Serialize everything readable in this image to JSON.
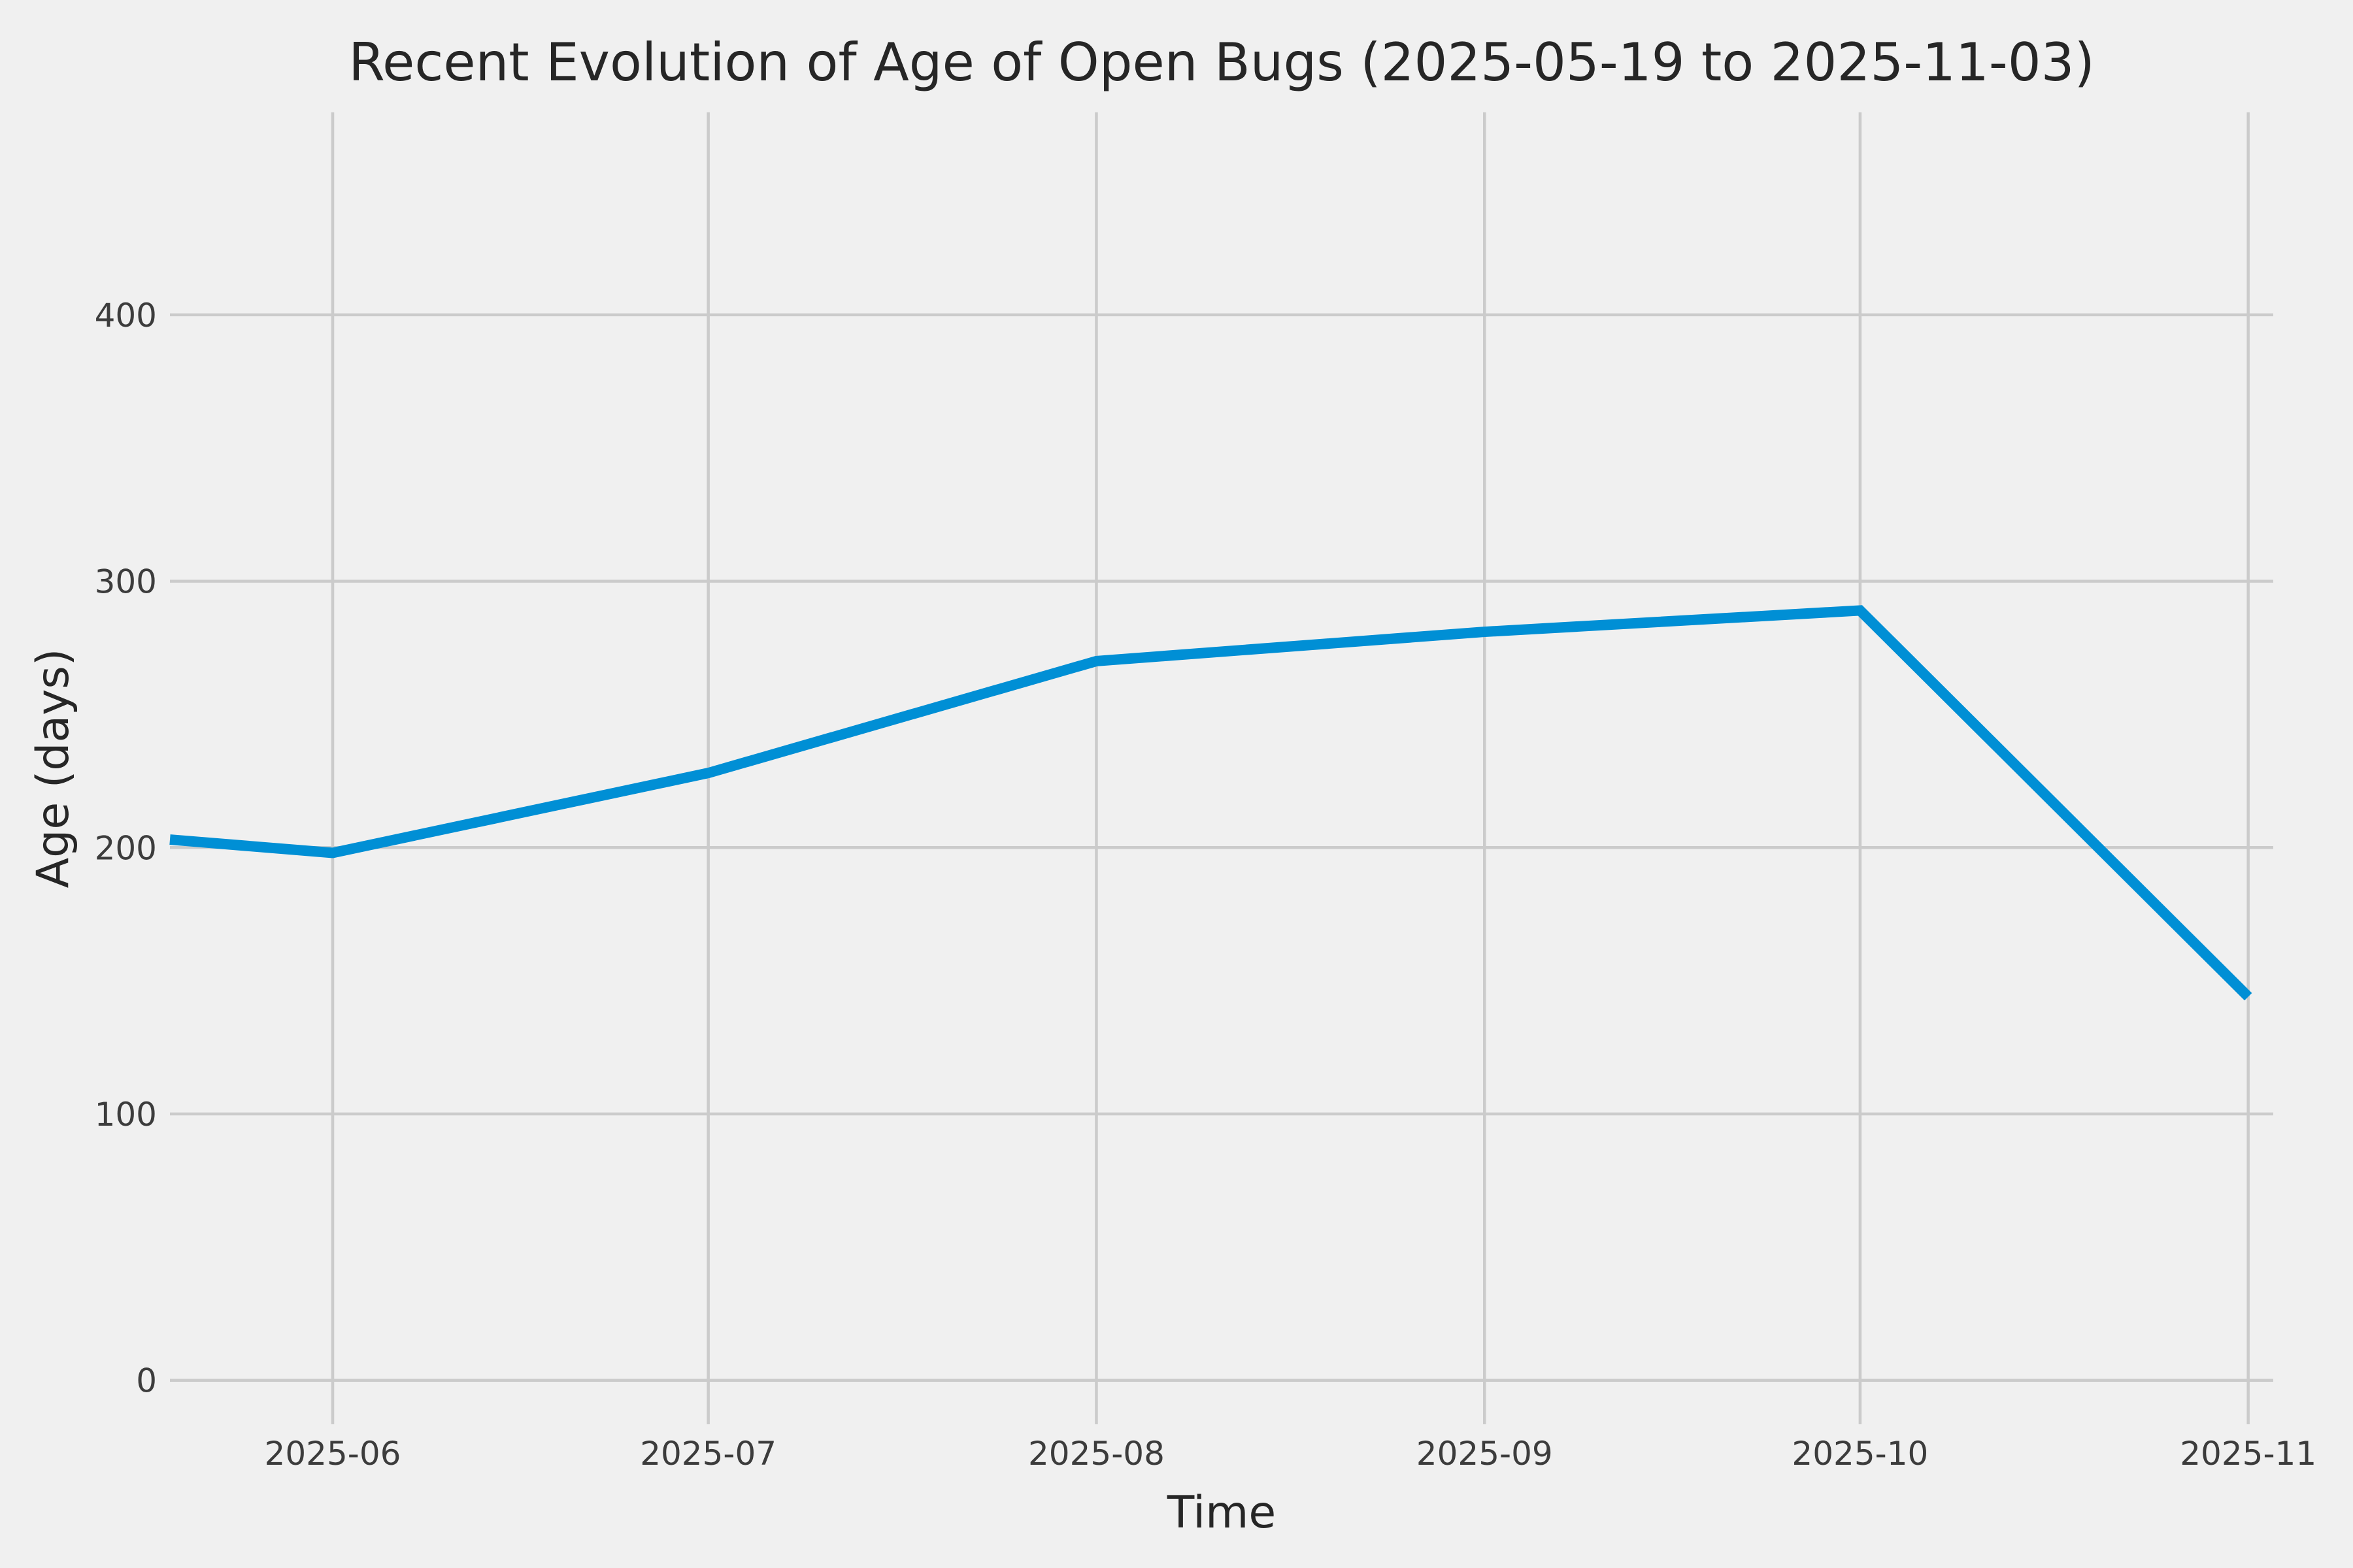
{
  "figure": {
    "title": "Recent Evolution of Age of Open Bugs (2025-05-19 to 2025-11-03)",
    "x_axis_label": "Time",
    "y_axis_label": "Age (days)"
  },
  "chart_data": {
    "type": "line",
    "title": "Recent Evolution of Age of Open Bugs (2025-05-19 to 2025-11-03)",
    "xlabel": "Time",
    "ylabel": "Age (days)",
    "x": [
      "2025-05-19",
      "2025-06-01",
      "2025-07-01",
      "2025-08-01",
      "2025-09-01",
      "2025-10-01",
      "2025-11-01"
    ],
    "values": [
      203,
      198,
      228,
      270,
      281,
      289,
      144
    ],
    "series_name": "Age of open bugs",
    "xtick_labels": [
      "2025-06",
      "2025-07",
      "2025-08",
      "2025-09",
      "2025-10",
      "2025-11"
    ],
    "xtick_dates": [
      "2025-06-01",
      "2025-07-01",
      "2025-08-01",
      "2025-09-01",
      "2025-10-01",
      "2025-11-01"
    ],
    "ytick_values": [
      0,
      100,
      200,
      300,
      400
    ],
    "xlim": [
      "2025-05-19",
      "2025-11-03"
    ],
    "ylim": [
      -16.5,
      476
    ],
    "grid": true,
    "legend": false,
    "colors": {
      "line": "#008fd5",
      "background": "#f0f0f0",
      "grid": "#cbcbcb",
      "title_text": "#262626",
      "label_text": "#262626",
      "tick_text": "#3c3c3c"
    }
  }
}
